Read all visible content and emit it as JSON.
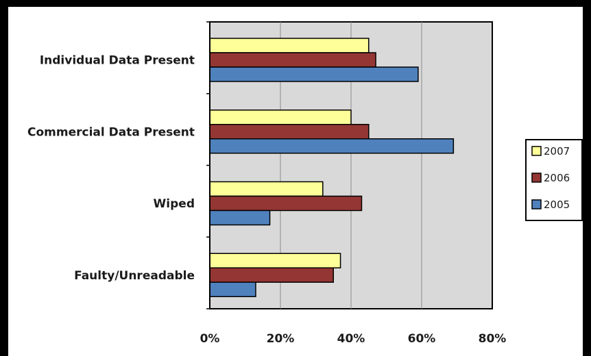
{
  "chart_data": {
    "type": "bar",
    "orientation": "horizontal",
    "categories": [
      "Individual Data Present",
      "Commercial Data Present",
      "Wiped",
      "Faulty/Unreadable"
    ],
    "series": [
      {
        "name": "2007",
        "color": "#ffff99",
        "values": [
          45,
          40,
          32,
          37
        ]
      },
      {
        "name": "2006",
        "color": "#943634",
        "values": [
          47,
          45,
          43,
          35
        ]
      },
      {
        "name": "2005",
        "color": "#4f81bd",
        "values": [
          59,
          69,
          17,
          13
        ]
      }
    ],
    "xlim": [
      0,
      80
    ],
    "xticks": [
      0,
      20,
      40,
      60,
      80
    ],
    "xtick_labels": [
      "0%",
      "20%",
      "40%",
      "60%",
      "80%"
    ],
    "legend_position": "right",
    "plot_background": "#d9d9d9",
    "grid": true
  }
}
